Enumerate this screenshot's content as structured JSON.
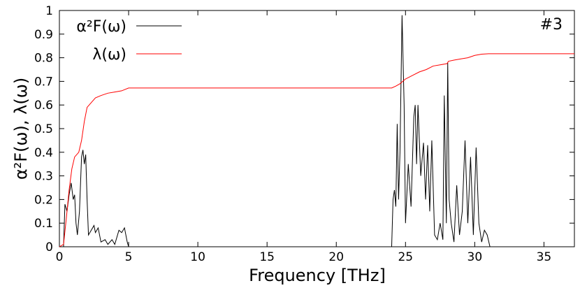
{
  "chart_data": {
    "type": "line",
    "xlabel": "Frequency [THz]",
    "ylabel": "α²F(ω), λ(ω)",
    "annotation": "#3",
    "xlim": [
      0,
      37.2
    ],
    "ylim": [
      0,
      1
    ],
    "xticks": [
      0,
      5,
      10,
      15,
      20,
      25,
      30,
      35
    ],
    "yticks": [
      0,
      0.1,
      0.2,
      0.3,
      0.4,
      0.5,
      0.6,
      0.7,
      0.8,
      0.9,
      1
    ],
    "legend": "upper left",
    "series": [
      {
        "name": "α²F(ω)",
        "color": "#000000",
        "x": [
          0,
          0.3,
          0.4,
          0.55,
          0.7,
          0.85,
          1.0,
          1.1,
          1.2,
          1.3,
          1.45,
          1.6,
          1.7,
          1.8,
          1.9,
          2.0,
          2.1,
          2.3,
          2.5,
          2.6,
          2.8,
          3.0,
          3.3,
          3.5,
          3.8,
          4.0,
          4.3,
          4.5,
          4.7,
          4.9,
          5.0,
          24.0,
          24.1,
          24.2,
          24.3,
          24.4,
          24.5,
          24.6,
          24.75,
          24.9,
          25.0,
          25.2,
          25.4,
          25.6,
          25.7,
          25.8,
          25.9,
          26.1,
          26.3,
          26.45,
          26.6,
          26.75,
          26.9,
          27.1,
          27.3,
          27.5,
          27.7,
          27.8,
          27.95,
          28.05,
          28.15,
          28.3,
          28.5,
          28.7,
          28.9,
          29.1,
          29.3,
          29.5,
          29.7,
          29.9,
          30.1,
          30.3,
          30.5,
          30.7,
          30.9,
          31.1,
          37.2
        ],
        "values": [
          0,
          0,
          0.18,
          0.15,
          0.22,
          0.27,
          0.2,
          0.22,
          0.1,
          0.05,
          0.15,
          0.38,
          0.41,
          0.35,
          0.39,
          0.2,
          0.05,
          0.07,
          0.09,
          0.06,
          0.08,
          0.02,
          0.03,
          0.01,
          0.03,
          0.01,
          0.07,
          0.06,
          0.08,
          0.02,
          0,
          0,
          0.2,
          0.24,
          0.17,
          0.52,
          0.2,
          0.4,
          0.98,
          0.6,
          0.1,
          0.35,
          0.17,
          0.55,
          0.6,
          0.35,
          0.6,
          0.3,
          0.44,
          0.2,
          0.43,
          0.15,
          0.45,
          0.05,
          0.03,
          0.1,
          0.03,
          0.64,
          0.1,
          0.78,
          0.2,
          0.1,
          0.02,
          0.26,
          0.05,
          0.15,
          0.45,
          0.1,
          0.38,
          0.05,
          0.42,
          0.1,
          0.02,
          0.07,
          0.05,
          0,
          0
        ]
      },
      {
        "name": "λ(ω)",
        "color": "#ff0000",
        "x": [
          0,
          0.3,
          0.5,
          0.7,
          0.9,
          1.1,
          1.4,
          1.6,
          1.8,
          2.0,
          2.3,
          2.6,
          3.0,
          3.5,
          4.0,
          4.5,
          5.0,
          24.0,
          24.3,
          24.6,
          25.0,
          25.5,
          26.0,
          26.5,
          27.0,
          27.5,
          28.0,
          28.1,
          28.5,
          29.0,
          29.5,
          30.0,
          30.5,
          31.0,
          37.2
        ],
        "values": [
          0,
          0.01,
          0.12,
          0.24,
          0.33,
          0.38,
          0.4,
          0.45,
          0.53,
          0.59,
          0.61,
          0.63,
          0.64,
          0.65,
          0.655,
          0.66,
          0.672,
          0.672,
          0.68,
          0.69,
          0.71,
          0.725,
          0.74,
          0.75,
          0.765,
          0.77,
          0.775,
          0.785,
          0.79,
          0.795,
          0.8,
          0.81,
          0.815,
          0.817,
          0.817
        ]
      }
    ]
  }
}
